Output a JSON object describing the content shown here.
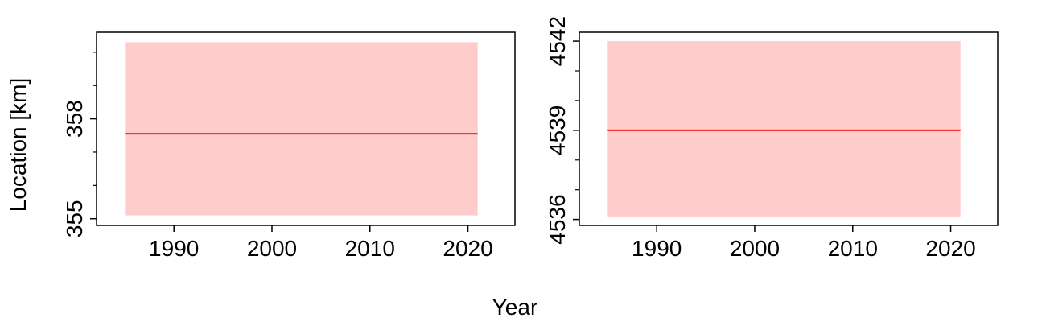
{
  "figure": {
    "ylabel": "Location [km]",
    "xlabel": "Year"
  },
  "chart_data": [
    {
      "type": "line",
      "x": [
        1985,
        2021
      ],
      "xlim": [
        1982.1,
        2024.8
      ],
      "xticks": [
        1990,
        2000,
        2010,
        2020
      ],
      "xtick_labels": [
        "1990",
        "2000",
        "2010",
        "2020"
      ],
      "ylim": [
        354.8,
        360.6
      ],
      "yticks": [
        355,
        358
      ],
      "ytick_labels": [
        "355",
        "358"
      ],
      "minor_yticks": [
        356,
        357,
        359,
        360
      ],
      "series": [
        {
          "values": [
            357.55,
            357.55
          ],
          "color": "#e8000b"
        }
      ],
      "band": {
        "lower": 355.1,
        "upper": 360.3,
        "color": "#ffcccc"
      }
    },
    {
      "type": "line",
      "x": [
        1985,
        2021
      ],
      "xlim": [
        1982.1,
        2024.8
      ],
      "xticks": [
        1990,
        2000,
        2010,
        2020
      ],
      "xtick_labels": [
        "1990",
        "2000",
        "2010",
        "2020"
      ],
      "ylim": [
        4535.8,
        4542.3
      ],
      "yticks": [
        4536,
        4539,
        4542
      ],
      "ytick_labels": [
        "4536",
        "4539",
        "4542"
      ],
      "minor_yticks": [
        4537,
        4538,
        4540,
        4541
      ],
      "series": [
        {
          "values": [
            4539.0,
            4539.0
          ],
          "color": "#e8000b"
        }
      ],
      "band": {
        "lower": 4536.1,
        "upper": 4542.0,
        "color": "#ffcccc"
      }
    }
  ]
}
